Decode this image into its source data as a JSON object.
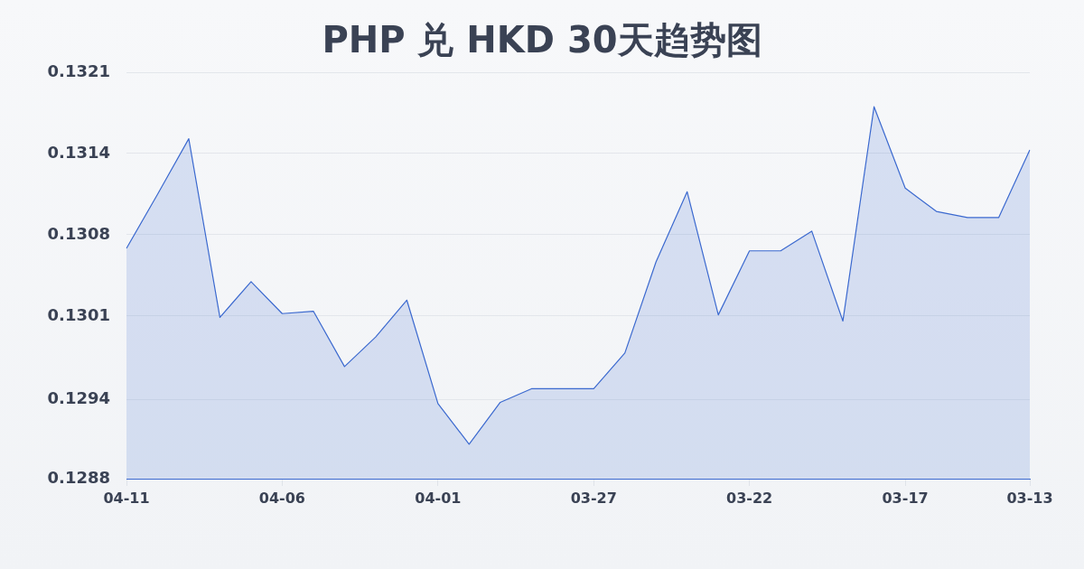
{
  "chart_data": {
    "type": "area",
    "title": "PHP 兑 HKD 30天趋势图",
    "categories": [
      "04-11",
      null,
      null,
      null,
      null,
      "04-06",
      null,
      null,
      null,
      null,
      "04-01",
      null,
      null,
      null,
      null,
      "03-27",
      null,
      null,
      null,
      null,
      "03-22",
      null,
      null,
      null,
      null,
      "03-17",
      null,
      null,
      null,
      "03-13"
    ],
    "values": [
      0.13067,
      0.13111,
      0.13156,
      0.13011,
      0.1304,
      0.13014,
      0.13016,
      0.12971,
      0.12995,
      0.13025,
      0.12941,
      0.12908,
      0.12942,
      0.12953,
      0.12953,
      0.12953,
      0.12982,
      0.13056,
      0.13113,
      0.13013,
      0.13065,
      0.13065,
      0.13081,
      0.13008,
      0.13182,
      0.13116,
      0.13097,
      0.13092,
      0.13092,
      0.13147
    ],
    "color": "#3b69cf",
    "ylim": [
      0.1288,
      0.1321
    ],
    "yticks": [
      0.1288,
      {
        "value": 0.12944,
        "label": "0.1294"
      },
      {
        "value": 0.13012,
        "label": "0.1301"
      },
      {
        "value": 0.13078,
        "label": "0.1308"
      },
      {
        "value": 0.13144,
        "label": "0.1314"
      },
      0.1321
    ],
    "grid": "y"
  }
}
